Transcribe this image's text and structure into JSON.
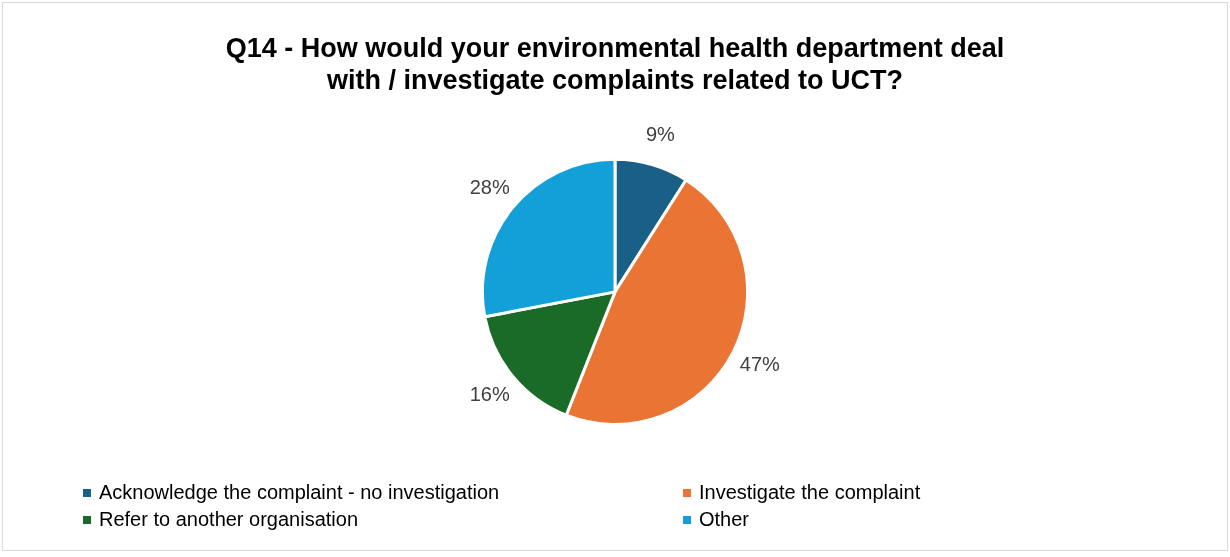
{
  "chart_data": {
    "type": "pie",
    "title": "Q14 - How would your environmental health department deal with / investigate complaints related to UCT?",
    "categories": [
      "Acknowledge the complaint - no investigation",
      "Investigate the complaint",
      "Refer to another organisation",
      "Other"
    ],
    "values": [
      9,
      47,
      16,
      28
    ],
    "colors": [
      "#1a5f85",
      "#ea7434",
      "#1b6b28",
      "#139fd7"
    ],
    "value_labels": [
      "9%",
      "47%",
      "16%",
      "28%"
    ],
    "legend": "bottom"
  }
}
